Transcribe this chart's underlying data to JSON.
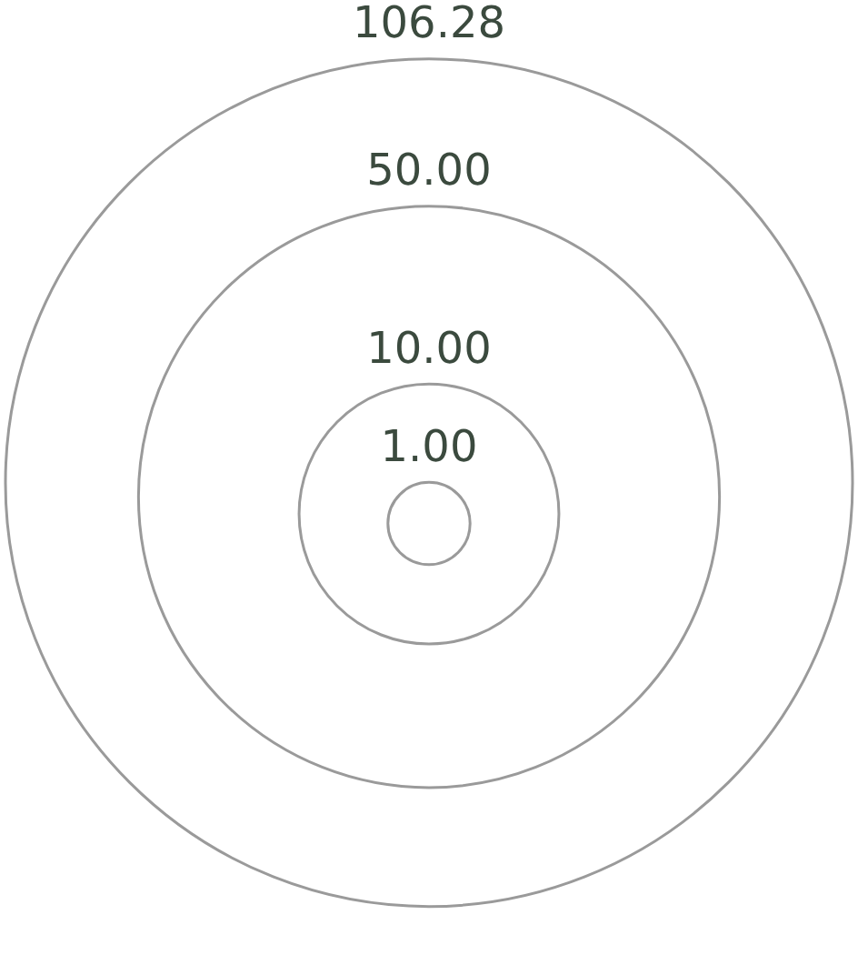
{
  "chart_data": {
    "type": "other",
    "values": [
      106.28,
      50,
      10,
      1
    ],
    "value_labels": [
      "106.28",
      "50.00",
      "10.00",
      "1.00"
    ],
    "color": "#9a9a9a"
  }
}
